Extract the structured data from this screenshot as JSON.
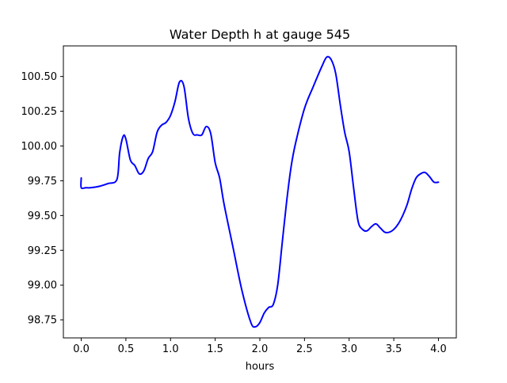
{
  "chart_data": {
    "type": "line",
    "title": "Water Depth h at gauge 545",
    "xlabel": "hours",
    "ylabel": "",
    "xlim": [
      -0.2,
      4.2
    ],
    "ylim": [
      98.62,
      100.72
    ],
    "xticks": [
      0.0,
      0.5,
      1.0,
      1.5,
      2.0,
      2.5,
      3.0,
      3.5,
      4.0
    ],
    "xtick_labels": [
      "0.0",
      "0.5",
      "1.0",
      "1.5",
      "2.0",
      "2.5",
      "3.0",
      "3.5",
      "4.0"
    ],
    "yticks": [
      98.75,
      99.0,
      99.25,
      99.5,
      99.75,
      100.0,
      100.25,
      100.5
    ],
    "ytick_labels": [
      "98.75",
      "99.00",
      "99.25",
      "99.50",
      "99.75",
      "100.00",
      "100.25",
      "100.50"
    ],
    "grid": false,
    "series": [
      {
        "color": "#0000ff",
        "x": [
          0.0,
          0.0,
          0.05,
          0.1,
          0.2,
          0.3,
          0.4,
          0.43,
          0.47,
          0.5,
          0.55,
          0.6,
          0.65,
          0.7,
          0.75,
          0.8,
          0.85,
          0.9,
          0.95,
          1.0,
          1.05,
          1.1,
          1.15,
          1.2,
          1.25,
          1.3,
          1.35,
          1.4,
          1.45,
          1.5,
          1.55,
          1.6,
          1.7,
          1.8,
          1.9,
          1.95,
          2.0,
          2.05,
          2.1,
          2.15,
          2.2,
          2.25,
          2.3,
          2.35,
          2.4,
          2.5,
          2.6,
          2.7,
          2.75,
          2.8,
          2.85,
          2.9,
          2.95,
          3.0,
          3.05,
          3.1,
          3.15,
          3.2,
          3.25,
          3.3,
          3.35,
          3.4,
          3.45,
          3.5,
          3.55,
          3.6,
          3.65,
          3.7,
          3.75,
          3.8,
          3.85,
          3.9,
          3.95,
          4.0
        ],
        "y": [
          99.77,
          99.7,
          99.7,
          99.7,
          99.71,
          99.73,
          99.76,
          99.95,
          100.07,
          100.05,
          99.9,
          99.86,
          99.8,
          99.82,
          99.91,
          99.96,
          100.1,
          100.15,
          100.17,
          100.22,
          100.32,
          100.46,
          100.43,
          100.2,
          100.09,
          100.08,
          100.08,
          100.14,
          100.09,
          99.88,
          99.77,
          99.58,
          99.27,
          98.96,
          98.73,
          98.7,
          98.73,
          98.8,
          98.84,
          98.86,
          99.0,
          99.3,
          99.6,
          99.85,
          100.02,
          100.27,
          100.43,
          100.58,
          100.64,
          100.62,
          100.52,
          100.3,
          100.1,
          99.96,
          99.7,
          99.46,
          99.4,
          99.39,
          99.42,
          99.44,
          99.41,
          99.38,
          99.38,
          99.4,
          99.44,
          99.5,
          99.58,
          99.69,
          99.77,
          99.8,
          99.81,
          99.78,
          99.74,
          99.74
        ]
      }
    ]
  }
}
